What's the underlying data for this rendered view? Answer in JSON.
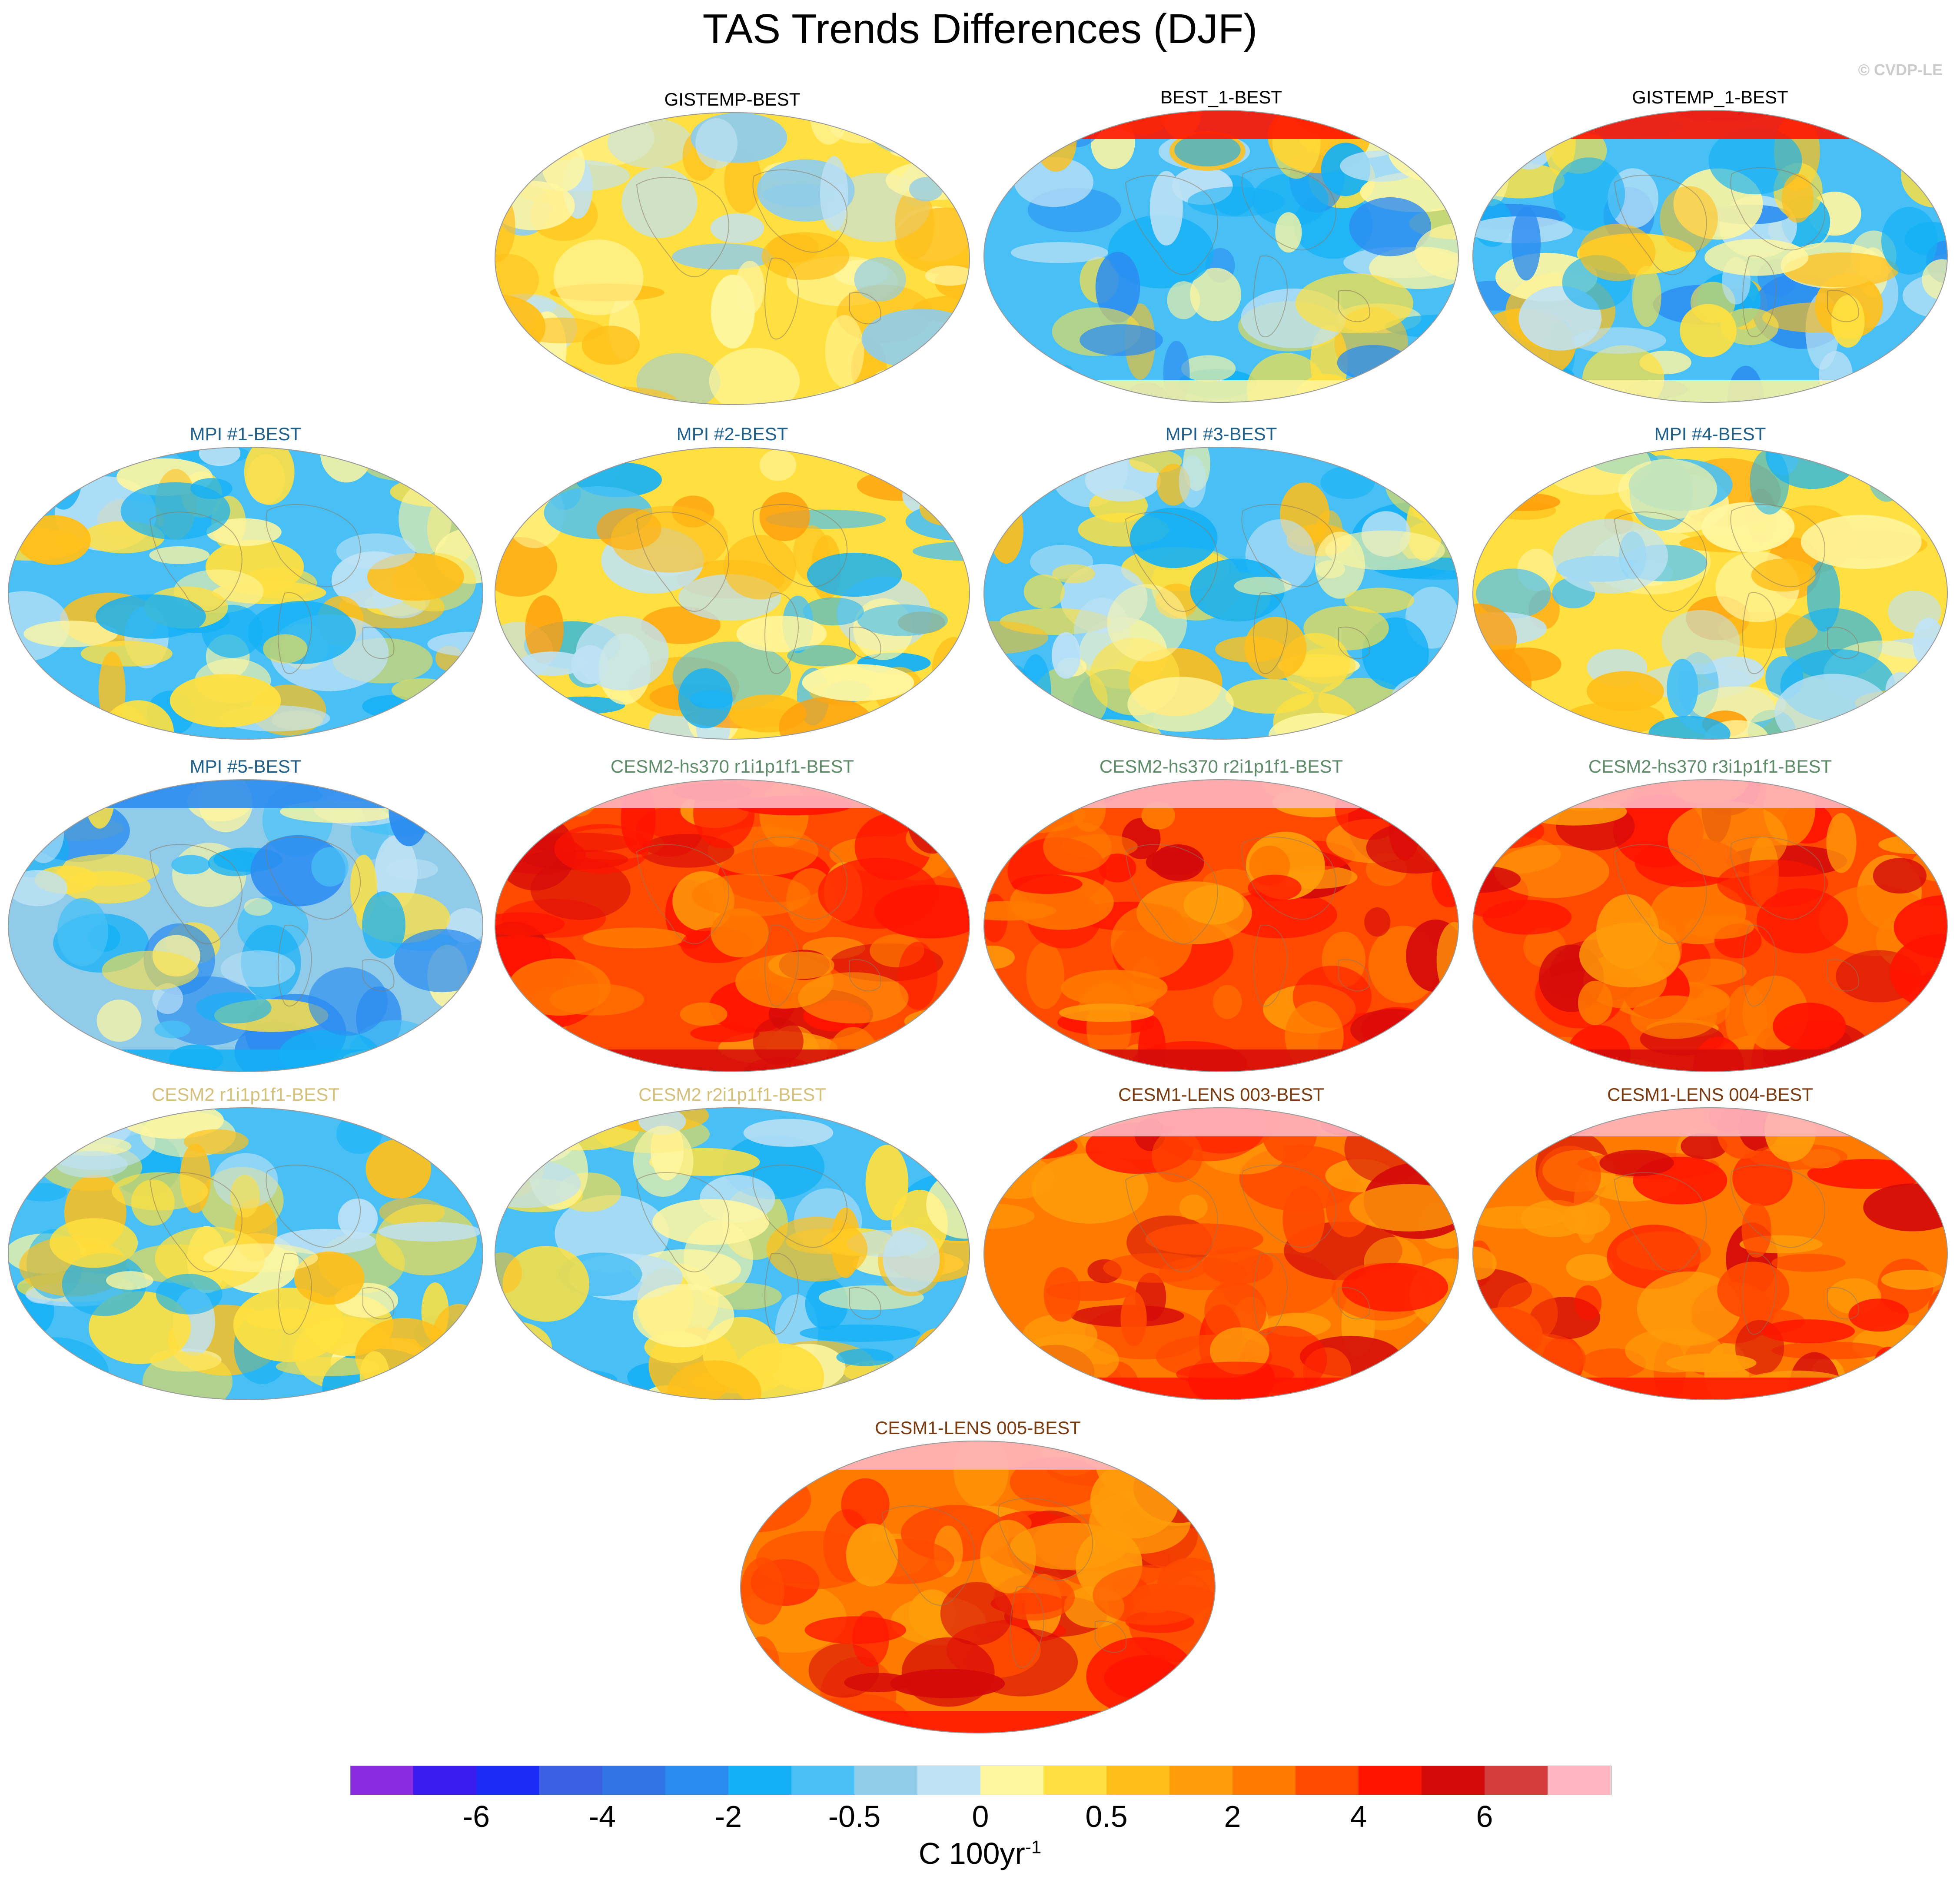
{
  "figure": {
    "title": "TAS Trends Differences (DJF)",
    "credit": "© CVDP-LE",
    "units": {
      "base": "C 100yr",
      "exponent": "-1"
    }
  },
  "panels": [
    {
      "title": "GISTEMP-BEST",
      "title_color": "#000000",
      "pattern": "neutral-warm"
    },
    {
      "title": "BEST_1-BEST",
      "title_color": "#000000",
      "pattern": "cool-arctic-hot"
    },
    {
      "title": "GISTEMP_1-BEST",
      "title_color": "#000000",
      "pattern": "cool-arctic-hot"
    },
    {
      "title": "MPI #1-BEST",
      "title_color": "#1f5f8b",
      "pattern": "mixed"
    },
    {
      "title": "MPI #2-BEST",
      "title_color": "#1f5f8b",
      "pattern": "mixed-warm"
    },
    {
      "title": "MPI #3-BEST",
      "title_color": "#1f5f8b",
      "pattern": "mixed"
    },
    {
      "title": "MPI #4-BEST",
      "title_color": "#1f5f8b",
      "pattern": "mixed-warm"
    },
    {
      "title": "MPI #5-BEST",
      "title_color": "#1f5f8b",
      "pattern": "mixed-cool"
    },
    {
      "title": "CESM2-hs370 r1i1p1f1-BEST",
      "title_color": "#5e8c6a",
      "pattern": "hot"
    },
    {
      "title": "CESM2-hs370 r2i1p1f1-BEST",
      "title_color": "#5e8c6a",
      "pattern": "hot"
    },
    {
      "title": "CESM2-hs370 r3i1p1f1-BEST",
      "title_color": "#5e8c6a",
      "pattern": "hot"
    },
    {
      "title": "CESM2 r1i1p1f1-BEST",
      "title_color": "#d4c07a",
      "pattern": "mixed"
    },
    {
      "title": "CESM2 r2i1p1f1-BEST",
      "title_color": "#d4c07a",
      "pattern": "mixed"
    },
    {
      "title": "CESM1-LENS 003-BEST",
      "title_color": "#7a3b10",
      "pattern": "hot-orange"
    },
    {
      "title": "CESM1-LENS 004-BEST",
      "title_color": "#7a3b10",
      "pattern": "hot-orange"
    },
    {
      "title": "CESM1-LENS 005-BEST",
      "title_color": "#7a3b10",
      "pattern": "hot-orange"
    }
  ],
  "colorbar": {
    "colors": [
      "#8a2be2",
      "#3a1cf0",
      "#1a2cf5",
      "#3a5fe0",
      "#3074e8",
      "#2b8cf0",
      "#14b0f5",
      "#48c0f5",
      "#90ccea",
      "#bfe2f5",
      "#fff6a0",
      "#ffe040",
      "#ffbf1a",
      "#ff9d0a",
      "#ff7a00",
      "#ff4a00",
      "#ff1400",
      "#d40a0a",
      "#d43c3c",
      "#ffb6c1"
    ],
    "ticks": [
      {
        "label": "-6",
        "index": 2
      },
      {
        "label": "-4",
        "index": 4
      },
      {
        "label": "-2",
        "index": 6
      },
      {
        "label": "-0.5",
        "index": 8
      },
      {
        "label": "0",
        "index": 10
      },
      {
        "label": "0.5",
        "index": 12
      },
      {
        "label": "2",
        "index": 14
      },
      {
        "label": "4",
        "index": 16
      },
      {
        "label": "6",
        "index": 18
      }
    ]
  }
}
